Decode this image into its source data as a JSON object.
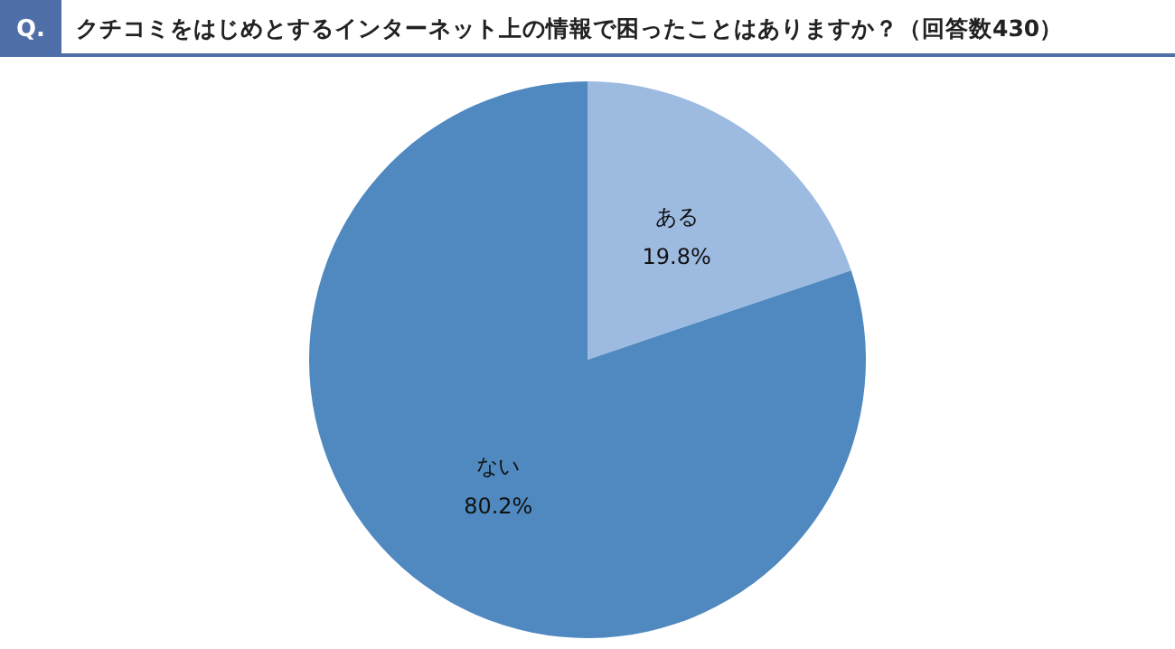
{
  "chart_data": {
    "type": "pie",
    "title": "クチコミをはじめとするインターネット上の情報で困ったことはありますか？（回答数430）",
    "annotations": [
      "Q."
    ],
    "categories": [
      "ある",
      "ない"
    ],
    "values": [
      19.8,
      80.2
    ],
    "colors": [
      "#9dbbe1",
      "#4f89c0"
    ],
    "value_labels": [
      "19.8%",
      "80.2%"
    ]
  }
}
